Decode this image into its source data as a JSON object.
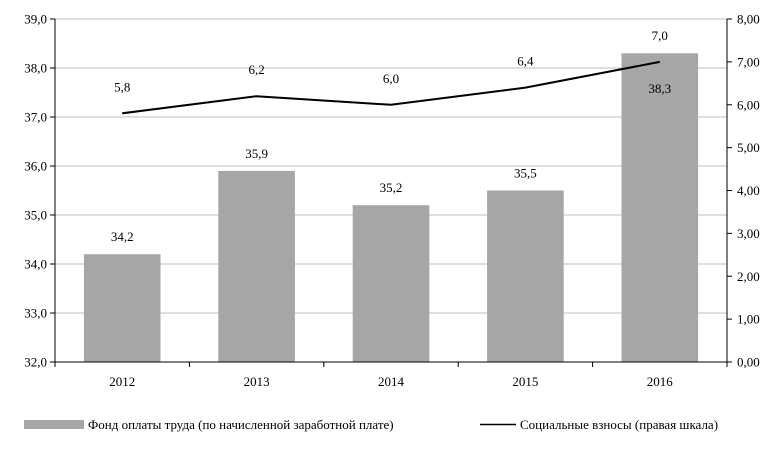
{
  "chart_data": {
    "type": "bar",
    "categories": [
      "2012",
      "2013",
      "2014",
      "2015",
      "2016"
    ],
    "series": [
      {
        "name": "Фонд оплаты труда (по начисленной заработной плате)",
        "type": "bar",
        "axis": "left",
        "values": [
          34.2,
          35.9,
          35.2,
          35.5,
          38.3
        ],
        "labels": [
          "34,2",
          "35,9",
          "35,2",
          "35,5",
          "38,3"
        ],
        "color": "#a6a6a6"
      },
      {
        "name": "Социальные взносы (правая шкала)",
        "type": "line",
        "axis": "right",
        "values": [
          5.8,
          6.2,
          6.0,
          6.4,
          7.0
        ],
        "labels": [
          "5,8",
          "6,2",
          "6,0",
          "6,4",
          "7,0"
        ],
        "color": "#000000"
      }
    ],
    "y_left": {
      "ylim": [
        32.0,
        39.0
      ],
      "ticks": [
        "32,0",
        "33,0",
        "34,0",
        "35,0",
        "36,0",
        "37,0",
        "38,0",
        "39,0"
      ]
    },
    "y_right": {
      "ylim": [
        0.0,
        8.0
      ],
      "ticks": [
        "0,00",
        "1,00",
        "2,00",
        "3,00",
        "4,00",
        "5,00",
        "6,00",
        "7,00",
        "8,00"
      ]
    },
    "grid": "horizontal",
    "legend": "bottom"
  }
}
